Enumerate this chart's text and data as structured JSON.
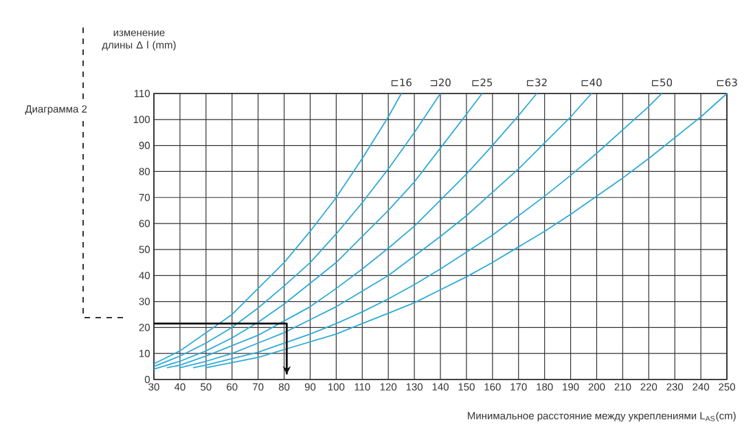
{
  "chart_data": {
    "type": "line",
    "title": "Диаграмма 2",
    "ylabel": "изменение длины Δ l (mm)",
    "xlabel": "Минимальное расстояние между укреплениями L$_{AS}$(cm)",
    "xlim": [
      30,
      250
    ],
    "ylim": [
      0,
      110
    ],
    "xticks": [
      30,
      40,
      50,
      60,
      70,
      80,
      90,
      100,
      110,
      120,
      130,
      140,
      150,
      160,
      170,
      180,
      190,
      200,
      210,
      220,
      230,
      240,
      250
    ],
    "yticks": [
      0,
      10,
      20,
      30,
      40,
      50,
      60,
      70,
      80,
      90,
      100,
      110
    ],
    "grid": true,
    "series": [
      {
        "name": "⊏16",
        "color": "#2eaad6",
        "x": [
          30,
          40,
          50,
          60,
          70,
          80,
          90,
          100,
          110,
          120,
          125
        ],
        "values": [
          6,
          11,
          18,
          25,
          35,
          45,
          57,
          70,
          85,
          101,
          110
        ]
      },
      {
        "name": "⊐20",
        "color": "#2eaad6",
        "x": [
          30,
          40,
          50,
          60,
          70,
          80,
          90,
          100,
          110,
          120,
          130,
          140
        ],
        "values": [
          5,
          9,
          14,
          20,
          27.5,
          36,
          45,
          56,
          68,
          81,
          95,
          110
        ]
      },
      {
        "name": "⊏25",
        "color": "#2eaad6",
        "x": [
          30,
          40,
          50,
          60,
          70,
          80,
          90,
          100,
          110,
          120,
          130,
          140,
          150,
          156
        ],
        "values": [
          4,
          7,
          11,
          16,
          22,
          29,
          37,
          45,
          55,
          65,
          76,
          89,
          102,
          110
        ]
      },
      {
        "name": "⊏32",
        "color": "#2eaad6",
        "x": [
          35,
          40,
          50,
          60,
          70,
          80,
          90,
          100,
          110,
          120,
          130,
          140,
          150,
          160,
          170,
          177
        ],
        "values": [
          4.5,
          5.5,
          9,
          13,
          17,
          22.5,
          28,
          35,
          42.5,
          50.5,
          59,
          69,
          79,
          90,
          101.5,
          110
        ]
      },
      {
        "name": "⊏40",
        "color": "#2eaad6",
        "x": [
          40,
          50,
          60,
          70,
          80,
          90,
          100,
          110,
          120,
          130,
          140,
          150,
          160,
          170,
          180,
          190,
          198
        ],
        "values": [
          4.5,
          7,
          10,
          14,
          18,
          23,
          28,
          34,
          40,
          47.5,
          55,
          63,
          72,
          81,
          91,
          101,
          110
        ]
      },
      {
        "name": "⊏50",
        "color": "#2eaad6",
        "x": [
          45,
          50,
          60,
          70,
          80,
          90,
          100,
          110,
          120,
          130,
          140,
          150,
          160,
          170,
          180,
          190,
          200,
          210,
          220,
          225
        ],
        "values": [
          4.5,
          5.5,
          8,
          10.5,
          14,
          17.5,
          21.5,
          26,
          31,
          36.5,
          42.5,
          49,
          55.5,
          63,
          70.5,
          78.5,
          87,
          96,
          105,
          110
        ]
      },
      {
        "name": "⊏63",
        "color": "#2eaad6",
        "x": [
          50,
          60,
          70,
          80,
          90,
          100,
          110,
          120,
          130,
          140,
          150,
          160,
          170,
          180,
          190,
          200,
          210,
          220,
          230,
          240,
          250
        ],
        "values": [
          4.5,
          6.5,
          8.5,
          11.5,
          14.5,
          17.5,
          21.5,
          25.5,
          29.5,
          34.5,
          39.5,
          45,
          51,
          57,
          63.5,
          70.5,
          77.5,
          85,
          93,
          101,
          110
        ]
      },
      {
        "type": "line",
        "color": "#111111",
        "x": [
          30,
          81,
          81
        ],
        "values": [
          21.5,
          21.5,
          2
        ]
      }
    ]
  }
}
